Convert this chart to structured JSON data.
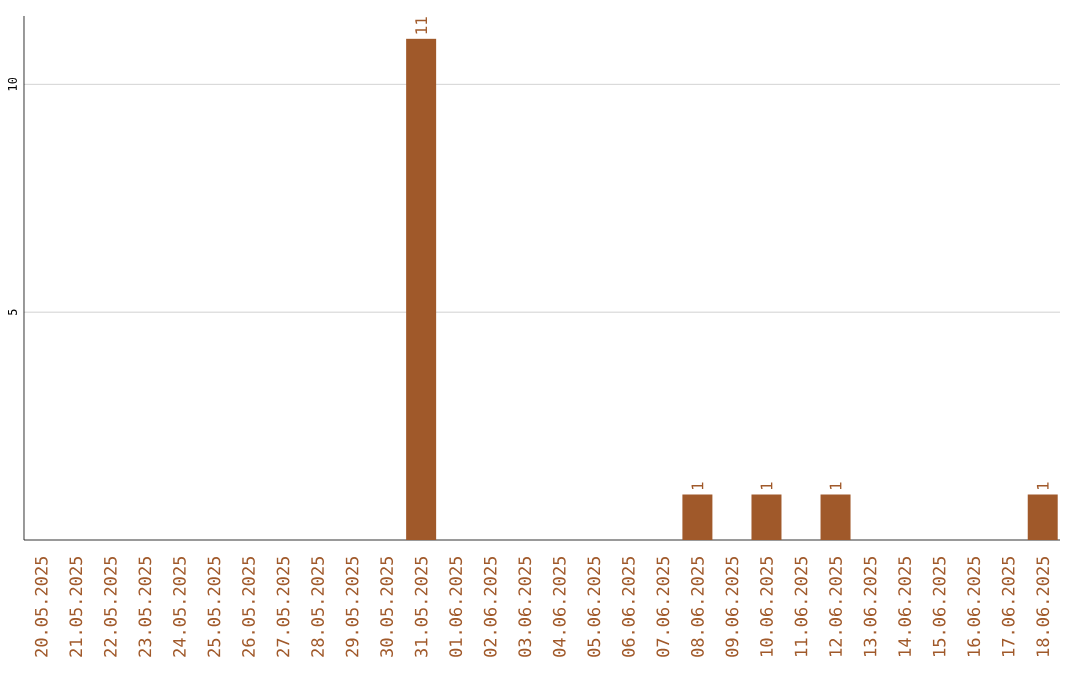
{
  "chart_data": {
    "type": "bar",
    "categories": [
      "20.05.2025",
      "21.05.2025",
      "22.05.2025",
      "23.05.2025",
      "24.05.2025",
      "25.05.2025",
      "26.05.2025",
      "27.05.2025",
      "28.05.2025",
      "29.05.2025",
      "30.05.2025",
      "31.05.2025",
      "01.06.2025",
      "02.06.2025",
      "03.06.2025",
      "04.06.2025",
      "05.06.2025",
      "06.06.2025",
      "07.06.2025",
      "08.06.2025",
      "09.06.2025",
      "10.06.2025",
      "11.06.2025",
      "12.06.2025",
      "13.06.2025",
      "14.06.2025",
      "15.06.2025",
      "16.06.2025",
      "17.06.2025",
      "18.06.2025"
    ],
    "values": [
      0,
      0,
      0,
      0,
      0,
      0,
      0,
      0,
      0,
      0,
      0,
      11,
      0,
      0,
      0,
      0,
      0,
      0,
      0,
      1,
      0,
      1,
      0,
      1,
      0,
      0,
      0,
      0,
      0,
      1
    ],
    "value_labels": [
      null,
      null,
      null,
      null,
      null,
      null,
      null,
      null,
      null,
      null,
      null,
      "11",
      null,
      null,
      null,
      null,
      null,
      null,
      null,
      "1",
      null,
      "1",
      null,
      "1",
      null,
      null,
      null,
      null,
      null,
      "1"
    ],
    "color": "#a0592a",
    "ylim": [
      0,
      11.5
    ],
    "yticks": [
      5,
      10
    ],
    "grid": "y"
  }
}
